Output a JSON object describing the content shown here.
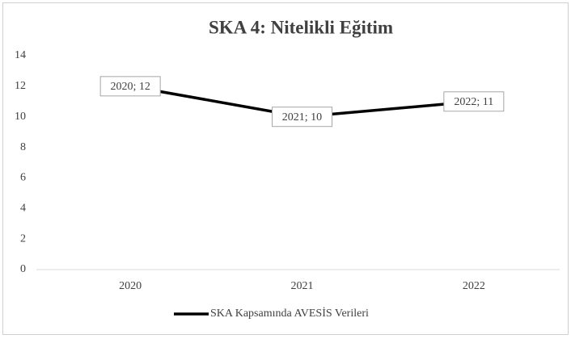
{
  "chart_data": {
    "type": "line",
    "title": "SKA 4: Nitelikli Eğitim",
    "categories": [
      "2020",
      "2021",
      "2022"
    ],
    "series": [
      {
        "name": "SKA Kapsamında AVESİS Verileri",
        "color": "#000000",
        "values": [
          12,
          10,
          11
        ],
        "value_labels": [
          "2020; 12",
          "2021; 10",
          "2022; 11"
        ]
      }
    ],
    "ylim": [
      0,
      14
    ],
    "yticks": [
      0,
      2,
      4,
      6,
      8,
      10,
      12,
      14
    ],
    "grid": false,
    "legend": "bottom"
  }
}
